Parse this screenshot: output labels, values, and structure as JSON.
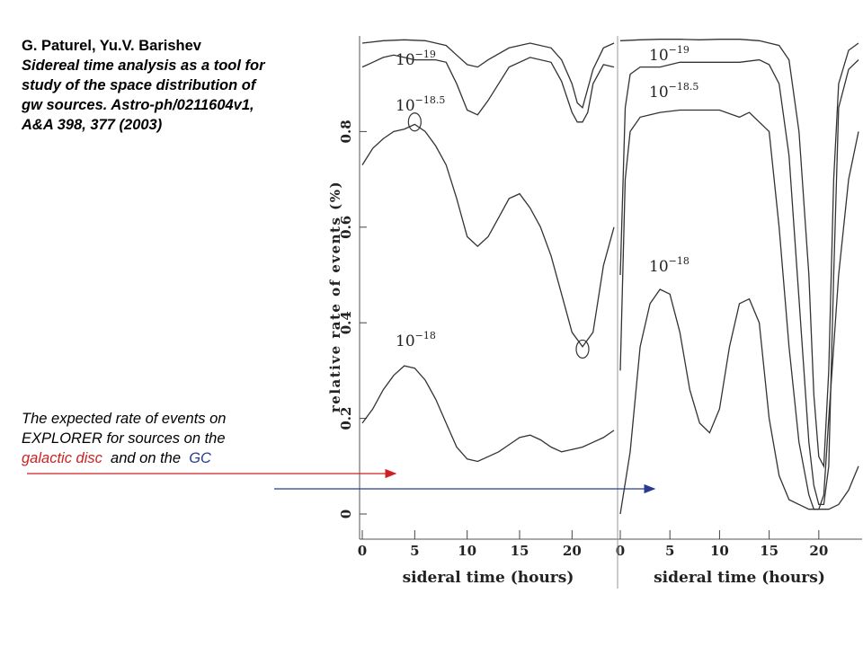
{
  "citation": {
    "authors": "G. Paturel, Yu.V. Barishev",
    "ref_lines": [
      "Sidereal time analysis as a tool for",
      "study of the space  distribution of",
      "gw sources.  Astro-ph/0211604v1,",
      "A&A 398, 377 (2003)"
    ]
  },
  "caption": {
    "line1": "The expected rate of events on",
    "line2": "EXPLORER  for sources on the",
    "galactic_disc": "galactic disc",
    "and_on_the": "  and on the  ",
    "gc": "GC",
    "galactic_color": "#cc2222",
    "gc_color": "#2b3a8f"
  },
  "chart_data": [
    {
      "type": "line",
      "panel": "galactic disc",
      "xlabel": "sideral time (hours)",
      "ylabel": "relative rate of events (%)",
      "xlim": [
        0,
        24
      ],
      "ylim": [
        0,
        1.0
      ],
      "x_ticks": [
        0,
        5,
        10,
        15,
        20
      ],
      "y_ticks": [
        0,
        0.2,
        0.4,
        0.6,
        0.8
      ],
      "y_tick_labels": [
        "0",
        "0.2",
        "0.4",
        "0.6",
        "0.8"
      ],
      "series": [
        {
          "name": "10^-19",
          "label_base": "10",
          "label_exp": "−19",
          "x": [
            0,
            2,
            4,
            6,
            8,
            9,
            10,
            11,
            12,
            14,
            16,
            18,
            19,
            20,
            20.5,
            21,
            22,
            23,
            24
          ],
          "y": [
            0.985,
            0.99,
            0.992,
            0.99,
            0.98,
            0.96,
            0.94,
            0.935,
            0.95,
            0.975,
            0.985,
            0.975,
            0.95,
            0.9,
            0.86,
            0.85,
            0.93,
            0.975,
            0.985
          ]
        },
        {
          "name": "10^-18.5",
          "label_base": "10",
          "label_exp": "−18.5",
          "x": [
            0,
            1,
            2,
            3,
            4,
            5,
            6,
            7,
            8,
            9,
            10,
            11,
            12,
            14,
            16,
            18,
            19,
            20,
            20.5,
            21,
            21.5,
            22,
            23,
            24
          ],
          "y": [
            0.935,
            0.945,
            0.955,
            0.96,
            0.955,
            0.95,
            0.95,
            0.95,
            0.945,
            0.9,
            0.845,
            0.835,
            0.865,
            0.935,
            0.955,
            0.945,
            0.905,
            0.84,
            0.82,
            0.82,
            0.84,
            0.9,
            0.94,
            0.935
          ]
        },
        {
          "name": "10^-19b",
          "label_base": "",
          "label_exp": "",
          "x": [
            0,
            1,
            2,
            3,
            4,
            5,
            6,
            7,
            8,
            9,
            10,
            11,
            12,
            13,
            14,
            15,
            16,
            17,
            18,
            19,
            20,
            21,
            22,
            23,
            24
          ],
          "y": [
            0.73,
            0.765,
            0.785,
            0.8,
            0.805,
            0.815,
            0.8,
            0.77,
            0.73,
            0.66,
            0.58,
            0.56,
            0.58,
            0.62,
            0.66,
            0.67,
            0.64,
            0.6,
            0.54,
            0.46,
            0.38,
            0.35,
            0.38,
            0.52,
            0.6
          ]
        },
        {
          "name": "10^-18",
          "label_base": "10",
          "label_exp": "−18",
          "x": [
            0,
            1,
            2,
            3,
            4,
            5,
            6,
            7,
            8,
            9,
            10,
            11,
            12,
            13,
            14,
            15,
            16,
            17,
            18,
            19,
            20,
            21,
            22,
            23,
            24
          ],
          "y": [
            0.19,
            0.22,
            0.26,
            0.29,
            0.31,
            0.305,
            0.28,
            0.24,
            0.19,
            0.14,
            0.115,
            0.11,
            0.12,
            0.13,
            0.145,
            0.16,
            0.165,
            0.155,
            0.14,
            0.13,
            0.135,
            0.14,
            0.15,
            0.16,
            0.175
          ]
        }
      ],
      "circled_points": [
        {
          "x": 5,
          "y": 0.82
        },
        {
          "x": 21,
          "y": 0.345
        }
      ]
    },
    {
      "type": "line",
      "panel": "GC",
      "xlabel": "sideral time (hours)",
      "ylabel": "",
      "xlim": [
        0,
        24
      ],
      "ylim": [
        0,
        1.0
      ],
      "x_ticks": [
        0,
        5,
        10,
        15,
        20
      ],
      "y_ticks": [],
      "y_tick_labels": [],
      "series": [
        {
          "name": "10^-19",
          "label_base": "10",
          "label_exp": "−19",
          "x": [
            0,
            2,
            4,
            6,
            8,
            10,
            12,
            14,
            16,
            17,
            18,
            19,
            19.5,
            20,
            20.5,
            21,
            21.5,
            22,
            23,
            24
          ],
          "y": [
            0.99,
            0.992,
            0.993,
            0.993,
            0.992,
            0.993,
            0.993,
            0.99,
            0.98,
            0.95,
            0.8,
            0.5,
            0.25,
            0.12,
            0.1,
            0.3,
            0.7,
            0.9,
            0.97,
            0.985
          ]
        },
        {
          "name": "10^-18.5",
          "label_base": "10",
          "label_exp": "−18.5",
          "x": [
            0,
            0.5,
            1,
            2,
            4,
            6,
            8,
            10,
            12,
            14,
            15,
            16,
            17,
            18,
            19,
            19.5,
            20,
            20.5,
            21,
            21.5,
            22,
            23,
            24
          ],
          "y": [
            0.5,
            0.85,
            0.92,
            0.935,
            0.935,
            0.945,
            0.945,
            0.945,
            0.945,
            0.95,
            0.94,
            0.9,
            0.75,
            0.45,
            0.15,
            0.06,
            0.02,
            0.02,
            0.1,
            0.5,
            0.85,
            0.93,
            0.95
          ]
        },
        {
          "name": "10^-18.5b",
          "label_base": "",
          "label_exp": "",
          "x": [
            0,
            0.5,
            1,
            2,
            4,
            6,
            8,
            10,
            12,
            13,
            14,
            15,
            16,
            17,
            18,
            19,
            19.5,
            20,
            20.5,
            21,
            21.5,
            22,
            23,
            24
          ],
          "y": [
            0.3,
            0.7,
            0.8,
            0.83,
            0.84,
            0.845,
            0.845,
            0.845,
            0.83,
            0.84,
            0.82,
            0.8,
            0.6,
            0.35,
            0.15,
            0.04,
            0.01,
            0.01,
            0.04,
            0.2,
            0.35,
            0.5,
            0.7,
            0.8
          ]
        },
        {
          "name": "10^-18",
          "label_base": "10",
          "label_exp": "−18",
          "x": [
            0,
            1,
            2,
            3,
            4,
            5,
            6,
            7,
            8,
            9,
            10,
            11,
            12,
            13,
            14,
            15,
            16,
            17,
            18,
            19,
            20,
            21,
            22,
            23,
            24
          ],
          "y": [
            0.0,
            0.13,
            0.35,
            0.44,
            0.47,
            0.46,
            0.38,
            0.26,
            0.19,
            0.17,
            0.22,
            0.35,
            0.44,
            0.45,
            0.4,
            0.2,
            0.08,
            0.03,
            0.02,
            0.01,
            0.01,
            0.01,
            0.02,
            0.05,
            0.1
          ]
        }
      ]
    }
  ]
}
